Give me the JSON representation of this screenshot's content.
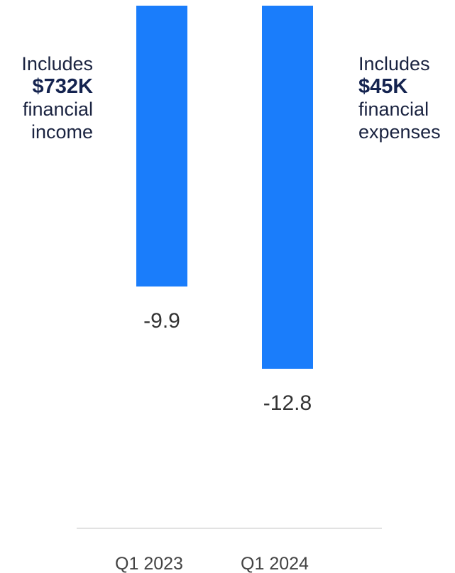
{
  "chart_data": {
    "type": "bar",
    "categories": [
      "Q1 2023",
      "Q1 2024"
    ],
    "values": [
      -9.9,
      -12.8
    ],
    "value_labels": [
      "-9.9",
      "-12.8"
    ],
    "ylim": [
      -15.3,
      0
    ],
    "bar_color": "#1a7dfb",
    "baseline_color": "#d9d9d9",
    "label_color": "#333333",
    "title": "",
    "xlabel": "",
    "ylabel": "",
    "grid": false
  },
  "annotations": {
    "left": {
      "line1": "Includes",
      "amount": "$732K",
      "line3": "financial",
      "line4": "income"
    },
    "right": {
      "line1": "Includes",
      "amount": "$45K",
      "line3": "financial",
      "line4": "expenses"
    }
  },
  "colors": {
    "text_dark": "#1a2340",
    "amount_text": "#14234f"
  }
}
